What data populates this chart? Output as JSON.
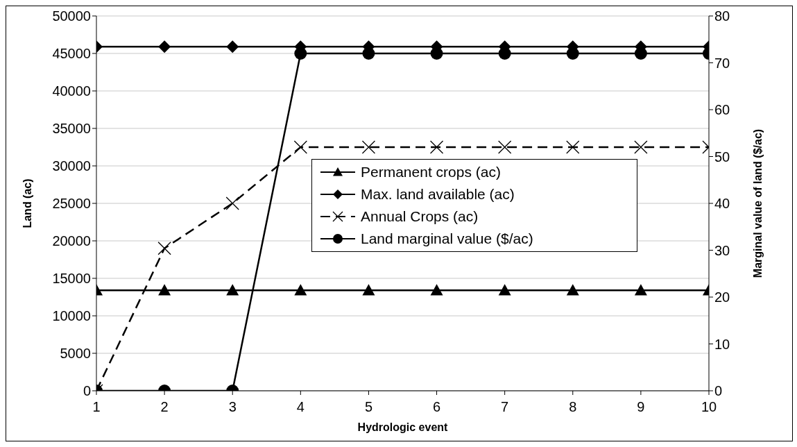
{
  "chart_data": {
    "type": "line",
    "xlabel": "Hydrologic event",
    "ylabel": "Land (ac)",
    "y2label": "Marginal value of land ($/ac)",
    "x": [
      1,
      2,
      3,
      4,
      5,
      6,
      7,
      8,
      9,
      10
    ],
    "series": [
      {
        "name": "Permanent crops (ac)",
        "color": "#000000",
        "marker": "triangle",
        "line_style": "solid",
        "values": [
          13400,
          13400,
          13400,
          13400,
          13400,
          13400,
          13400,
          13400,
          13400,
          13400
        ]
      },
      {
        "name": "Max. land available (ac)",
        "color": "#000000",
        "marker": "diamond",
        "line_style": "solid",
        "values": [
          45900,
          45900,
          45900,
          45900,
          45900,
          45900,
          45900,
          45900,
          45900,
          45900
        ]
      },
      {
        "name": "Annual Crops (ac)",
        "color": "#000000",
        "marker": "cross",
        "line_style": "dashed",
        "values": [
          0,
          19000,
          25000,
          32500,
          32500,
          32500,
          32500,
          32500,
          32500,
          32500
        ]
      },
      {
        "name": "Land marginal value ($/ac)",
        "color": "#000000",
        "marker": "circle",
        "line_style": "solid",
        "axis": "y2",
        "values": [
          0,
          0,
          0,
          72,
          72,
          72,
          72,
          72,
          72,
          72
        ]
      }
    ],
    "xlim": [
      1,
      10
    ],
    "xticks": [
      1,
      2,
      3,
      4,
      5,
      6,
      7,
      8,
      9,
      10
    ],
    "ylim": [
      0,
      50000
    ],
    "yticks": [
      0,
      5000,
      10000,
      15000,
      20000,
      25000,
      30000,
      35000,
      40000,
      45000,
      50000
    ],
    "y2lim": [
      0,
      80
    ],
    "y2ticks": [
      0,
      10,
      20,
      30,
      40,
      50,
      60,
      70,
      80
    ],
    "grid": "y",
    "legend": "right"
  }
}
